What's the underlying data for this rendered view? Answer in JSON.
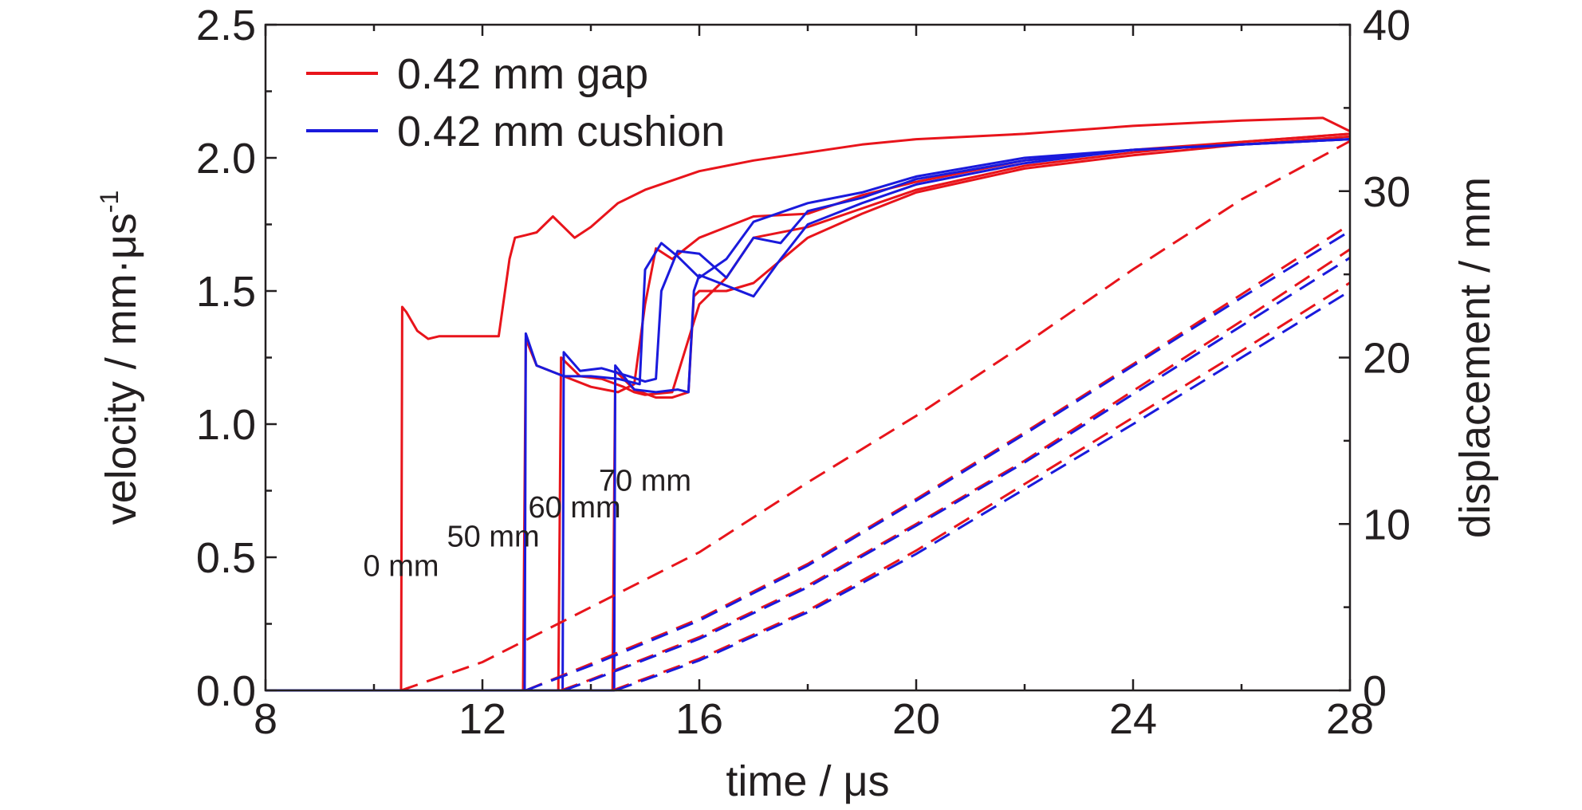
{
  "chart_data": {
    "type": "line",
    "xlabel": "time / μs",
    "ylabel_left": "velocity / mm·μs",
    "ylabel_left_superscript": "-1",
    "ylabel_right": "displacement / mm",
    "xlim": [
      8,
      28
    ],
    "ylim_left": [
      0,
      2.5
    ],
    "ylim_right": [
      0,
      40
    ],
    "x_ticks": [
      "8",
      "12",
      "16",
      "20",
      "24",
      "28"
    ],
    "y_left_ticks": [
      "0.0",
      "0.5",
      "1.0",
      "1.5",
      "2.0",
      "2.5"
    ],
    "y_right_ticks": [
      "0",
      "10",
      "20",
      "30",
      "40"
    ],
    "grid": false,
    "legend_position": "top-left",
    "legend": [
      {
        "label": "0.42 mm gap",
        "color": "#e8141b"
      },
      {
        "label": "0.42 mm cushion",
        "color": "#1a1adc"
      }
    ],
    "annotations": [
      {
        "text": "0 mm",
        "x": 10.5,
        "y": 0.43
      },
      {
        "text": "50 mm",
        "x": 12.2,
        "y": 0.54
      },
      {
        "text": "60 mm",
        "x": 13.7,
        "y": 0.65
      },
      {
        "text": "70 mm",
        "x": 15.0,
        "y": 0.75
      }
    ],
    "velocity_series": [
      {
        "color": "#e8141b",
        "x": [
          8,
          10.5,
          10.52,
          10.6,
          10.8,
          11.0,
          11.2,
          11.5,
          12.0,
          12.3,
          12.5,
          12.6,
          12.8,
          13.0,
          13.3,
          13.5,
          13.7,
          14.0,
          14.5,
          15.0,
          16.0,
          17.0,
          18.0,
          19.0,
          20.0,
          22.0,
          24.0,
          26.0,
          27.5,
          28.0
        ],
        "y": [
          0,
          0,
          1.44,
          1.42,
          1.35,
          1.32,
          1.33,
          1.33,
          1.33,
          1.33,
          1.62,
          1.7,
          1.71,
          1.72,
          1.78,
          1.74,
          1.7,
          1.74,
          1.83,
          1.88,
          1.95,
          1.99,
          2.02,
          2.05,
          2.07,
          2.09,
          2.12,
          2.14,
          2.15,
          2.1
        ]
      },
      {
        "color": "#e8141b",
        "x": [
          8,
          12.75,
          12.8,
          13.0,
          13.5,
          14.0,
          14.5,
          14.8,
          15.0,
          15.2,
          15.5,
          16.0,
          17.0,
          18.0,
          19.0,
          20.0,
          22.0,
          24.0,
          26.0,
          28.0
        ],
        "y": [
          0,
          0,
          1.32,
          1.22,
          1.18,
          1.14,
          1.12,
          1.15,
          1.45,
          1.66,
          1.62,
          1.7,
          1.78,
          1.79,
          1.86,
          1.91,
          1.99,
          2.03,
          2.06,
          2.09
        ]
      },
      {
        "color": "#e8141b",
        "x": [
          8,
          13.4,
          13.45,
          13.8,
          14.2,
          14.6,
          14.8,
          15.0,
          15.5,
          16.0,
          16.5,
          17.0,
          18.0,
          19.0,
          20.0,
          22.0,
          24.0,
          26.0,
          28.0
        ],
        "y": [
          0,
          0,
          1.25,
          1.18,
          1.17,
          1.14,
          1.12,
          1.11,
          1.12,
          1.45,
          1.55,
          1.7,
          1.74,
          1.81,
          1.88,
          1.97,
          2.02,
          2.06,
          2.09
        ]
      },
      {
        "color": "#e8141b",
        "x": [
          8,
          14.4,
          14.45,
          14.8,
          15.2,
          15.5,
          15.8,
          15.9,
          16.0,
          16.5,
          17.0,
          18.0,
          19.0,
          20.0,
          22.0,
          24.0,
          26.0,
          28.0
        ],
        "y": [
          0,
          0,
          1.2,
          1.13,
          1.1,
          1.1,
          1.12,
          1.48,
          1.5,
          1.5,
          1.53,
          1.7,
          1.79,
          1.87,
          1.96,
          2.01,
          2.05,
          2.08
        ]
      },
      {
        "color": "#1a1adc",
        "x": [
          8,
          12.78,
          12.8,
          13.0,
          13.5,
          14.0,
          14.5,
          14.9,
          15.0,
          15.3,
          15.6,
          16.0,
          16.5,
          17.0,
          18.0,
          19.0,
          20.0,
          22.0,
          24.0,
          26.0,
          28.0
        ],
        "y": [
          0,
          0,
          1.34,
          1.22,
          1.18,
          1.18,
          1.17,
          1.15,
          1.58,
          1.68,
          1.63,
          1.55,
          1.62,
          1.76,
          1.83,
          1.87,
          1.93,
          2.0,
          2.03,
          2.05,
          2.07
        ]
      },
      {
        "color": "#1a1adc",
        "x": [
          8,
          13.48,
          13.5,
          13.8,
          14.2,
          14.7,
          15.0,
          15.2,
          15.3,
          15.6,
          16.0,
          16.5,
          17.0,
          17.5,
          18.0,
          19.0,
          20.0,
          22.0,
          24.0,
          26.0,
          28.0
        ],
        "y": [
          0,
          0,
          1.27,
          1.2,
          1.21,
          1.18,
          1.16,
          1.17,
          1.5,
          1.65,
          1.64,
          1.55,
          1.7,
          1.68,
          1.8,
          1.85,
          1.92,
          1.99,
          2.03,
          2.05,
          2.07
        ]
      },
      {
        "color": "#1a1adc",
        "x": [
          8,
          14.43,
          14.45,
          14.8,
          15.2,
          15.6,
          15.8,
          15.9,
          16.0,
          16.5,
          17.0,
          17.5,
          18.0,
          19.0,
          20.0,
          22.0,
          24.0,
          26.0,
          28.0
        ],
        "y": [
          0,
          0,
          1.22,
          1.13,
          1.12,
          1.13,
          1.12,
          1.5,
          1.56,
          1.52,
          1.48,
          1.62,
          1.75,
          1.83,
          1.9,
          1.98,
          2.03,
          2.05,
          2.07
        ]
      }
    ],
    "displacement_series": [
      {
        "color": "#e8141b",
        "x": [
          10.5,
          12.0,
          14.0,
          16.0,
          18.0,
          20.0,
          22.0,
          24.0,
          26.0,
          28.0
        ],
        "y": [
          0,
          1.7,
          5.0,
          8.3,
          12.5,
          16.5,
          20.8,
          25.3,
          29.5,
          33.0
        ]
      },
      {
        "color": "#e8141b",
        "x": [
          12.8,
          14.0,
          16.0,
          18.0,
          20.0,
          22.0,
          24.0,
          26.0,
          28.0
        ],
        "y": [
          0,
          1.6,
          4.3,
          7.6,
          11.5,
          15.5,
          19.6,
          23.8,
          28.0
        ]
      },
      {
        "color": "#e8141b",
        "x": [
          13.45,
          14.0,
          16.0,
          18.0,
          20.0,
          22.0,
          24.0,
          26.0,
          28.0
        ],
        "y": [
          0,
          0.65,
          3.2,
          6.3,
          10.0,
          13.8,
          18.0,
          22.2,
          26.5
        ]
      },
      {
        "color": "#e8141b",
        "x": [
          14.4,
          16.0,
          18.0,
          20.0,
          22.0,
          24.0,
          26.0,
          28.0
        ],
        "y": [
          0,
          1.9,
          4.8,
          8.4,
          12.4,
          16.4,
          20.4,
          24.5
        ]
      },
      {
        "color": "#1a1adc",
        "x": [
          12.8,
          14.0,
          16.0,
          18.0,
          20.0,
          22.0,
          24.0,
          26.0,
          28.0
        ],
        "y": [
          0,
          1.5,
          4.2,
          7.5,
          11.4,
          15.4,
          19.5,
          23.6,
          27.6
        ]
      },
      {
        "color": "#1a1adc",
        "x": [
          13.5,
          14.0,
          16.0,
          18.0,
          20.0,
          22.0,
          24.0,
          26.0,
          28.0
        ],
        "y": [
          0,
          0.6,
          3.1,
          6.2,
          9.9,
          13.7,
          17.8,
          21.9,
          26.0
        ]
      },
      {
        "color": "#1a1adc",
        "x": [
          14.45,
          16.0,
          18.0,
          20.0,
          22.0,
          24.0,
          26.0,
          28.0
        ],
        "y": [
          0,
          1.8,
          4.7,
          8.2,
          12.1,
          16.0,
          20.0,
          24.0
        ]
      }
    ]
  }
}
